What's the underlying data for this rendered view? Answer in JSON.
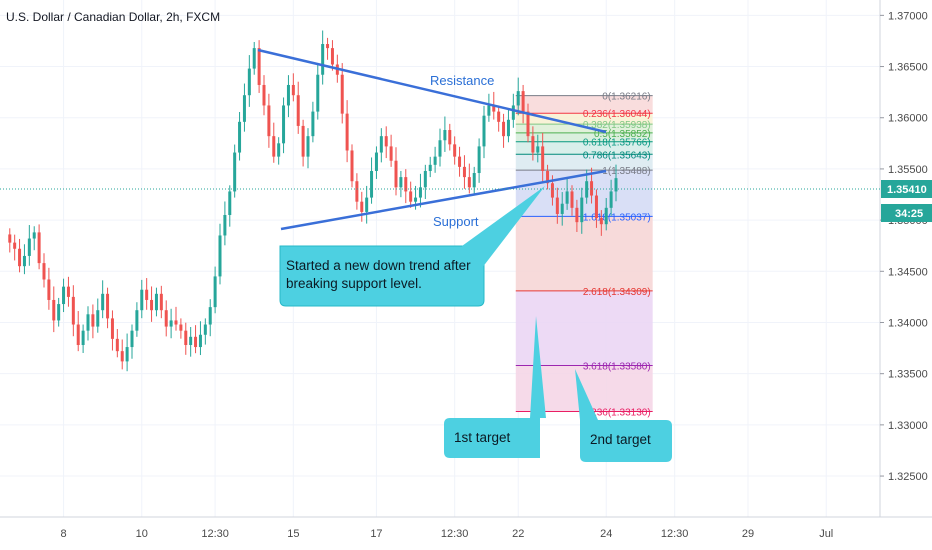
{
  "title": "U.S. Dollar / Canadian Dollar, 2h, FXCM",
  "chart_data": {
    "type": "candlestick",
    "title": "U.S. Dollar / Canadian Dollar, 2h, FXCM",
    "ylim": [
      1.321,
      1.3715
    ],
    "y_ticks": [
      "1.37000",
      "1.36500",
      "1.36000",
      "1.35500",
      "1.35000",
      "1.34500",
      "1.34000",
      "1.33500",
      "1.33000",
      "1.32500"
    ],
    "y_tick_values": [
      1.37,
      1.365,
      1.36,
      1.355,
      1.35,
      1.345,
      1.34,
      1.335,
      1.33,
      1.325
    ],
    "x_ticks": [
      "8",
      "10",
      "12:30",
      "15",
      "17",
      "12:30",
      "22",
      "24",
      "12:30",
      "29",
      "Jul"
    ],
    "x_tick_bars": [
      11,
      27,
      42,
      58,
      75,
      91,
      104,
      122,
      136,
      151,
      167
    ],
    "x_range_bars": [
      -2,
      178
    ],
    "current_price": "1.35410",
    "countdown": "34:25",
    "closes": [
      1.3478,
      1.3472,
      1.3455,
      1.3465,
      1.3482,
      1.3488,
      1.3458,
      1.3442,
      1.3422,
      1.3402,
      1.3418,
      1.3435,
      1.3425,
      1.3398,
      1.3378,
      1.3392,
      1.3408,
      1.3396,
      1.3412,
      1.3428,
      1.3404,
      1.3384,
      1.3372,
      1.3362,
      1.3376,
      1.3392,
      1.3412,
      1.3432,
      1.3422,
      1.3412,
      1.3428,
      1.3412,
      1.3396,
      1.3402,
      1.3398,
      1.3392,
      1.3378,
      1.3386,
      1.3376,
      1.3388,
      1.3398,
      1.3415,
      1.3445,
      1.3485,
      1.3505,
      1.3528,
      1.3566,
      1.3596,
      1.3622,
      1.3648,
      1.3668,
      1.3632,
      1.3612,
      1.3582,
      1.3562,
      1.3575,
      1.3612,
      1.3632,
      1.3622,
      1.3592,
      1.3562,
      1.3582,
      1.3606,
      1.3642,
      1.3672,
      1.3668,
      1.3652,
      1.3642,
      1.3604,
      1.3568,
      1.3538,
      1.3518,
      1.3508,
      1.3522,
      1.3548,
      1.3566,
      1.3582,
      1.3572,
      1.3558,
      1.3532,
      1.3542,
      1.3528,
      1.3518,
      1.3522,
      1.3532,
      1.3548,
      1.3554,
      1.3562,
      1.3578,
      1.3588,
      1.3574,
      1.3562,
      1.3552,
      1.3542,
      1.3532,
      1.3546,
      1.3572,
      1.3602,
      1.3612,
      1.3606,
      1.3596,
      1.3582,
      1.3598,
      1.3612,
      1.3626,
      1.3606,
      1.3582,
      1.3566,
      1.3572,
      1.3548,
      1.3536,
      1.3522,
      1.3506,
      1.3516,
      1.3528,
      1.3512,
      1.3498,
      1.3522,
      1.3538,
      1.3524,
      1.3502,
      1.3496,
      1.3512,
      1.3528,
      1.3541
    ],
    "fibonacci": [
      {
        "label": "0(1.36216)",
        "level": 1.36216,
        "color": "#787b86"
      },
      {
        "label": "0.236(1.36044)",
        "level": 1.36044,
        "color": "#f23645"
      },
      {
        "label": "0.382(1.35938)",
        "level": 1.35938,
        "color": "#81c784"
      },
      {
        "label": "0.5(1.35852)",
        "level": 1.35852,
        "color": "#4caf50"
      },
      {
        "label": "0.618(1.35766)",
        "level": 1.35766,
        "color": "#089981"
      },
      {
        "label": "0.786(1.35643)",
        "level": 1.35643,
        "color": "#00897b"
      },
      {
        "label": "1(1.35488)",
        "level": 1.35488,
        "color": "#787b86"
      },
      {
        "label": "1.618(1.35037)",
        "level": 1.35037,
        "color": "#2962ff"
      },
      {
        "label": "2.618(1.34309)",
        "level": 1.34309,
        "color": "#e53935"
      },
      {
        "label": "3.618(1.33580)",
        "level": 1.3358,
        "color": "#9c27b0"
      },
      {
        "label": "4.236(1.33130)",
        "level": 1.3313,
        "color": "#e91e63"
      }
    ],
    "annotations": {
      "resistance": "Resistance",
      "support": "Support",
      "callout_main_line1": "Started a new down trend after",
      "callout_main_line2": "breaking support level.",
      "target1": "1st target",
      "target2": "2nd target"
    },
    "colors": {
      "up": "#26a69a",
      "down": "#ef5350",
      "trendline": "#3a6fd8",
      "callout": "#4dd0e1",
      "price_tag": "#26a69a"
    }
  }
}
